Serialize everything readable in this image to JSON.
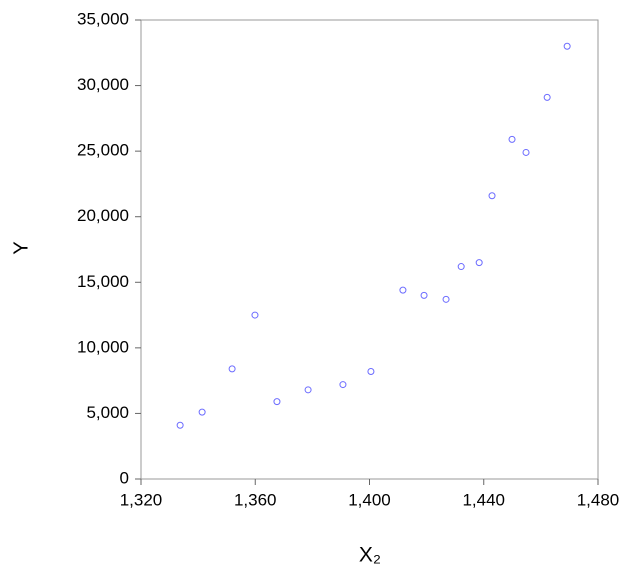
{
  "chart_data": {
    "type": "scatter",
    "xlabel": "X₂",
    "ylabel": "Y",
    "x": [
      1333.7,
      1341.4,
      1351.9,
      1359.9,
      1367.6,
      1378.5,
      1390.7,
      1400.5,
      1411.7,
      1419.1,
      1426.8,
      1432.1,
      1438.4,
      1442.9,
      1449.9,
      1454.8,
      1462.2,
      1469.2
    ],
    "series": [
      {
        "color": "#6b6bff",
        "values": [
          4100,
          5100,
          8400,
          12500,
          5900,
          6800,
          7200,
          8200,
          14400,
          14000,
          13700,
          16200,
          16500,
          21600,
          25900,
          24900,
          29100,
          33000
        ]
      }
    ],
    "xlim": [
      1320,
      1480
    ],
    "xticks": [
      {
        "value": 1320,
        "label": "1,320"
      },
      {
        "value": 1360,
        "label": "1,360"
      },
      {
        "value": 1400,
        "label": "1,400"
      },
      {
        "value": 1440,
        "label": "1,440"
      },
      {
        "value": 1480,
        "label": "1,480"
      }
    ],
    "ylim": [
      0,
      35000
    ],
    "yticks": [
      0,
      {
        "value": 5000,
        "label": "5,000"
      },
      {
        "value": 10000,
        "label": "10,000"
      },
      {
        "value": 15000,
        "label": "15,000"
      },
      {
        "value": 20000,
        "label": "20,000"
      },
      {
        "value": 25000,
        "label": "25,000"
      },
      {
        "value": 30000,
        "label": "30,000"
      },
      {
        "value": 35000,
        "label": "35,000"
      }
    ],
    "grid": false
  }
}
